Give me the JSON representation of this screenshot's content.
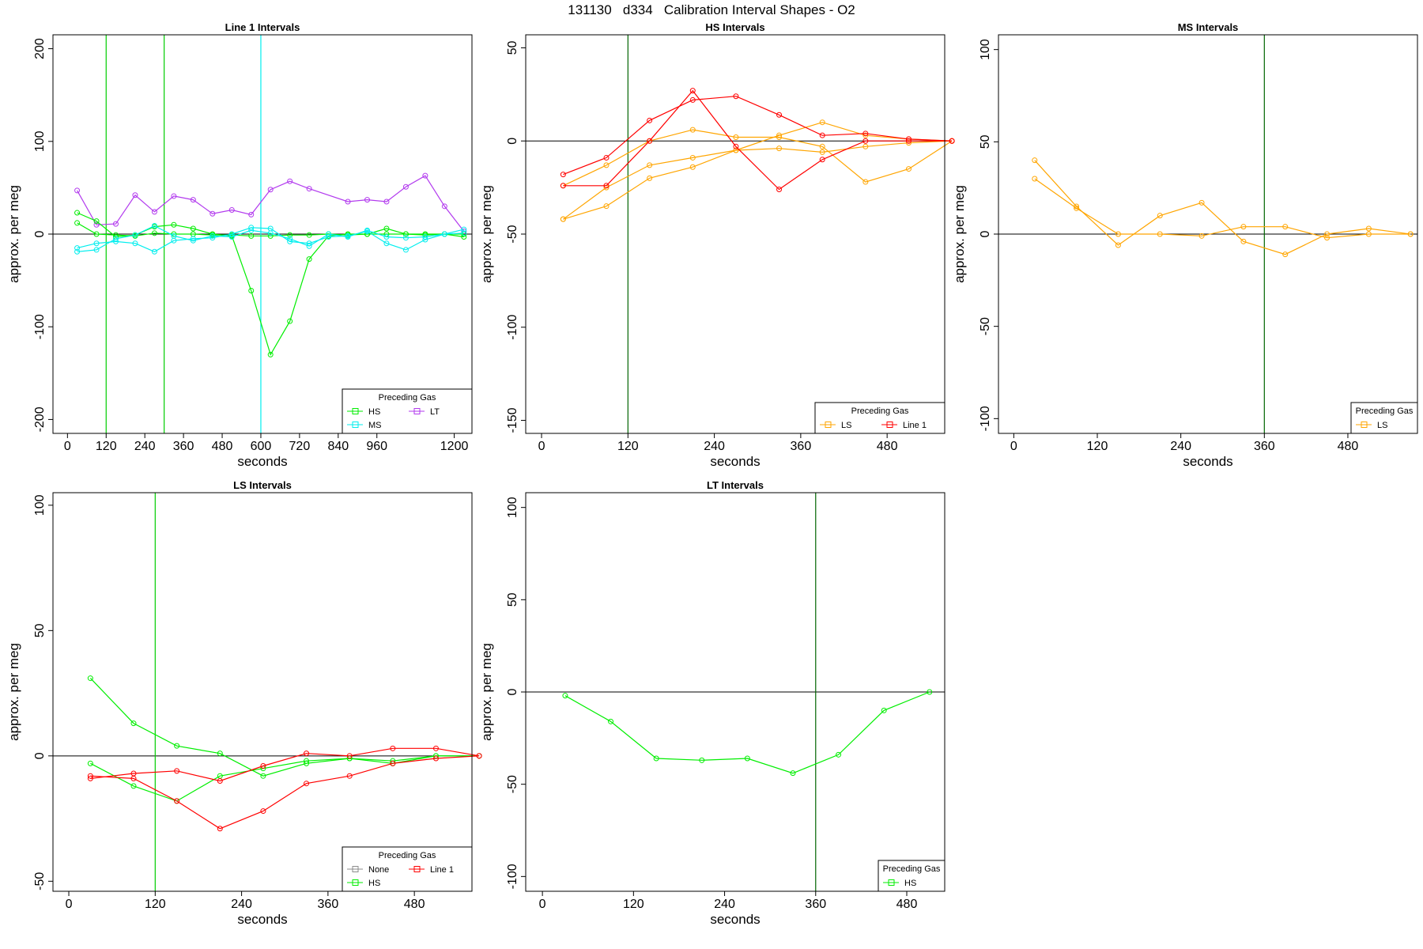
{
  "page_title": "131130   d334   Calibration Interval Shapes - O2",
  "chart_data": [
    {
      "type": "line",
      "title": "Line 1 Intervals",
      "xlabel": "seconds",
      "ylabel": "approx. per meg",
      "xlim": [
        -45,
        1255
      ],
      "ylim": [
        -215,
        215
      ],
      "xticks": [
        0,
        120,
        240,
        360,
        480,
        600,
        720,
        840,
        960,
        1200
      ],
      "yticks": [
        -200,
        -100,
        0,
        100,
        200
      ],
      "vlines": [
        {
          "x": 120,
          "color": "#00cd00"
        },
        {
          "x": 300,
          "color": "#00cd00"
        },
        {
          "x": 600,
          "color": "#00eeee"
        }
      ],
      "legend": {
        "title": "Preceding Gas",
        "position": "bottom-right",
        "entries": [
          {
            "label": "HS",
            "color": "#00ee00"
          },
          {
            "label": "LT",
            "color": "#b23aee"
          },
          {
            "label": "MS",
            "color": "#00eeee"
          }
        ]
      },
      "series": [
        {
          "name": "LT",
          "color": "#b23aee",
          "x": [
            30,
            90,
            150,
            210,
            270,
            330,
            390,
            450,
            510,
            570,
            630,
            690,
            750,
            870,
            930,
            990,
            1050,
            1110,
            1170,
            1230
          ],
          "y": [
            47,
            10,
            11,
            42,
            24,
            41,
            37,
            22,
            26,
            21,
            48,
            57,
            49,
            35,
            37,
            35,
            51,
            63,
            30,
            3
          ]
        },
        {
          "name": "HS",
          "color": "#00ee00",
          "x": [
            30,
            90,
            150,
            210,
            270,
            330,
            390,
            450,
            510,
            570,
            630,
            690,
            750,
            810,
            870,
            930,
            990,
            1050,
            1110,
            1170,
            1230
          ],
          "y": [
            23,
            14,
            -3,
            -1,
            8,
            10,
            6,
            0,
            -2,
            -61,
            -130,
            -94,
            -27,
            -2,
            0,
            0,
            6,
            0,
            0,
            0,
            -3
          ]
        },
        {
          "name": "HS",
          "color": "#00ee00",
          "x": [
            30,
            90,
            150,
            210,
            270,
            330,
            390,
            450,
            510,
            570,
            630,
            690,
            750,
            810,
            870,
            930,
            990,
            1050,
            1110,
            1170,
            1230
          ],
          "y": [
            12,
            0,
            -1,
            -2,
            1,
            0,
            0,
            -1,
            -1,
            -2,
            -2,
            -1,
            -1,
            0,
            -1,
            0,
            0,
            0,
            -1,
            0,
            0
          ]
        },
        {
          "name": "MS",
          "color": "#00eeee",
          "x": [
            30,
            90,
            150,
            210,
            270,
            330,
            390,
            450,
            510,
            570,
            630,
            690,
            750,
            810,
            870,
            930,
            990,
            1050,
            1110,
            1170,
            1230
          ],
          "y": [
            -15,
            -10,
            -8,
            -10,
            -19,
            -7,
            -5,
            -4,
            0,
            7,
            6,
            -8,
            -10,
            -3,
            -2,
            3,
            -10,
            -17,
            -6,
            0,
            5
          ]
        },
        {
          "name": "MS",
          "color": "#00eeee",
          "x": [
            30,
            90,
            150,
            210,
            270,
            330,
            390,
            450,
            510,
            570,
            630,
            690,
            750,
            810,
            870,
            930,
            990,
            1050,
            1110,
            1170,
            1230
          ],
          "y": [
            -19,
            -17,
            -5,
            -1,
            9,
            -2,
            -7,
            -2,
            -3,
            4,
            1,
            -5,
            -13,
            0,
            -3,
            4,
            -3,
            -4,
            -3,
            0,
            1
          ]
        }
      ]
    },
    {
      "type": "line",
      "title": "HS Intervals",
      "xlabel": "seconds",
      "ylabel": "approx. per meg",
      "xlim": [
        -22,
        560
      ],
      "ylim": [
        -157,
        57
      ],
      "xticks": [
        0,
        120,
        240,
        360,
        480
      ],
      "yticks": [
        -150,
        -100,
        -50,
        0,
        50
      ],
      "vlines": [
        {
          "x": 120,
          "color": "#006400"
        }
      ],
      "legend": {
        "title": "Preceding Gas",
        "position": "bottom-right",
        "entries": [
          {
            "label": "LS",
            "color": "#ffa500"
          },
          {
            "label": "Line 1",
            "color": "#ff0000"
          }
        ]
      },
      "series": [
        {
          "name": "LS",
          "color": "#ffa500",
          "x": [
            30,
            90,
            150,
            210,
            270,
            330,
            390,
            450,
            510,
            570
          ],
          "y": [
            -42,
            -35,
            -20,
            -14,
            -5,
            3,
            10,
            3,
            1,
            0
          ]
        },
        {
          "name": "LS",
          "color": "#ffa500",
          "x": [
            30,
            90,
            150,
            210,
            270,
            330,
            390,
            450,
            510,
            570
          ],
          "y": [
            -42,
            -25,
            -13,
            -9,
            -5,
            -4,
            -6,
            -3,
            -1,
            0
          ]
        },
        {
          "name": "LS",
          "color": "#ffa500",
          "x": [
            30,
            90,
            150,
            210,
            270,
            330,
            390,
            450,
            510,
            570
          ],
          "y": [
            -24,
            -13,
            0,
            6,
            2,
            2,
            -3,
            -22,
            -15,
            0
          ]
        },
        {
          "name": "Line 1",
          "color": "#ff0000",
          "x": [
            30,
            90,
            150,
            210,
            270,
            330,
            390,
            450,
            510,
            570
          ],
          "y": [
            -18,
            -9,
            11,
            22,
            24,
            14,
            3,
            4,
            1,
            0
          ]
        },
        {
          "name": "Line 1",
          "color": "#ff0000",
          "x": [
            30,
            90,
            150,
            210,
            270,
            330,
            390,
            450,
            510,
            570
          ],
          "y": [
            -24,
            -24,
            0,
            27,
            -3,
            -26,
            -10,
            0,
            0,
            0
          ]
        }
      ]
    },
    {
      "type": "line",
      "title": "MS Intervals",
      "xlabel": "seconds",
      "ylabel": "approx. per meg",
      "xlim": [
        -22,
        580
      ],
      "ylim": [
        -108,
        108
      ],
      "xticks": [
        0,
        120,
        240,
        360,
        480
      ],
      "yticks": [
        -100,
        -50,
        0,
        50,
        100
      ],
      "vlines": [
        {
          "x": 360,
          "color": "#006400"
        }
      ],
      "legend": {
        "title": "Preceding Gas",
        "position": "bottom-right",
        "entries": [
          {
            "label": "LS",
            "color": "#ffa500"
          }
        ]
      },
      "series": [
        {
          "name": "LS",
          "color": "#ffa500",
          "x": [
            30,
            90,
            150,
            210,
            270,
            330,
            390,
            450,
            510,
            570
          ],
          "y": [
            40,
            15,
            -6,
            10,
            17,
            -4,
            -11,
            0,
            3,
            0
          ]
        },
        {
          "name": "LS",
          "color": "#ffa500",
          "x": [
            30,
            90,
            150,
            210,
            270,
            330,
            390,
            450,
            510,
            570
          ],
          "y": [
            30,
            14,
            0,
            0,
            -1,
            4,
            4,
            -2,
            0,
            0
          ]
        }
      ]
    },
    {
      "type": "line",
      "title": "LS Intervals",
      "xlabel": "seconds",
      "ylabel": "approx. per meg",
      "xlim": [
        -22,
        560
      ],
      "ylim": [
        -54,
        105
      ],
      "xticks": [
        0,
        120,
        240,
        360,
        480
      ],
      "yticks": [
        -50,
        0,
        50,
        100
      ],
      "vlines": [
        {
          "x": 120,
          "color": "#00cd00"
        }
      ],
      "legend": {
        "title": "Preceding Gas",
        "position": "bottom-right",
        "entries": [
          {
            "label": "None",
            "color": "#8c8c8c"
          },
          {
            "label": "Line 1",
            "color": "#ff0000"
          },
          {
            "label": "HS",
            "color": "#00ee00"
          }
        ]
      },
      "series": [
        {
          "name": "HS",
          "color": "#00ee00",
          "x": [
            30,
            90,
            150,
            210,
            270,
            330,
            390,
            450,
            510,
            570
          ],
          "y": [
            31,
            13,
            4,
            1,
            -8,
            -3,
            -1,
            -2,
            0,
            0
          ]
        },
        {
          "name": "HS",
          "color": "#00ee00",
          "x": [
            30,
            90,
            150,
            210,
            270,
            330,
            390,
            450,
            510,
            570
          ],
          "y": [
            -3,
            -12,
            -18,
            -8,
            -5,
            -2,
            -1,
            -3,
            0,
            0
          ]
        },
        {
          "name": "Line 1",
          "color": "#ff0000",
          "x": [
            30,
            90,
            150,
            210,
            270,
            330,
            390,
            450,
            510,
            570
          ],
          "y": [
            -9,
            -7,
            -6,
            -10,
            -4,
            1,
            0,
            3,
            3,
            0
          ]
        },
        {
          "name": "Line 1",
          "color": "#ff0000",
          "x": [
            30,
            90,
            150,
            210,
            270,
            330,
            390,
            450,
            510,
            570
          ],
          "y": [
            -8,
            -9,
            -18,
            -29,
            -22,
            -11,
            -8,
            -3,
            -1,
            0
          ]
        }
      ]
    },
    {
      "type": "line",
      "title": "LT Intervals",
      "xlabel": "seconds",
      "ylabel": "approx. per meg",
      "xlim": [
        -22,
        530
      ],
      "ylim": [
        -108,
        108
      ],
      "xticks": [
        0,
        120,
        240,
        360,
        480
      ],
      "yticks": [
        -100,
        -50,
        0,
        50,
        100
      ],
      "vlines": [
        {
          "x": 360,
          "color": "#006400"
        }
      ],
      "legend": {
        "title": "Preceding Gas",
        "position": "bottom-right",
        "entries": [
          {
            "label": "HS",
            "color": "#00ee00"
          }
        ]
      },
      "series": [
        {
          "name": "HS",
          "color": "#00ee00",
          "x": [
            30,
            90,
            150,
            210,
            270,
            330,
            390,
            450,
            510
          ],
          "y": [
            -2,
            -16,
            -36,
            -37,
            -36,
            -44,
            -34,
            -10,
            0
          ]
        }
      ]
    }
  ]
}
